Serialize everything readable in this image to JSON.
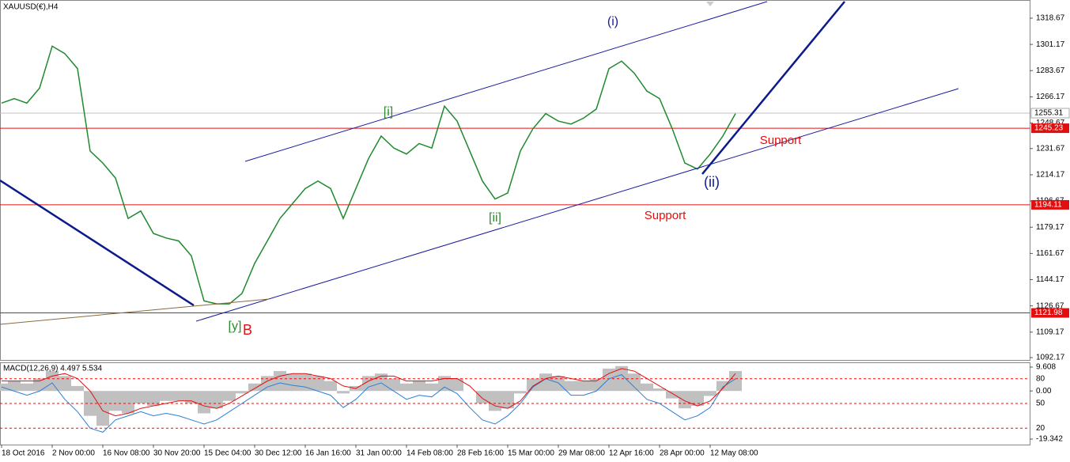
{
  "chart_data": [
    {
      "type": "line",
      "title": "XAUUSD(€),H4",
      "categories": [
        "18 Oct 2016",
        null,
        null,
        null,
        "2 Nov 00:00",
        null,
        null,
        null,
        "16 Nov 08:00",
        null,
        null,
        null,
        "30 Nov 20:00",
        null,
        null,
        null,
        "15 Dec 04:00",
        null,
        null,
        null,
        "30 Dec 12:00",
        null,
        null,
        null,
        "16 Jan 16:00",
        null,
        null,
        null,
        "31 Jan 00:00",
        null,
        null,
        null,
        "14 Feb 08:00",
        null,
        null,
        null,
        "28 Feb 16:00",
        null,
        null,
        null,
        "15 Mar 00:00",
        null,
        null,
        null,
        "29 Mar 08:00",
        null,
        null,
        null,
        "12 Apr 16:00",
        null,
        null,
        null,
        "28 Apr 00:00",
        null,
        null,
        null,
        "12 May 08:00",
        null,
        null
      ],
      "values": [
        1262,
        1265,
        1262,
        1272,
        1300,
        1295,
        1285,
        1230,
        1222,
        1212,
        1185,
        1190,
        1175,
        1172,
        1170,
        1160,
        1130,
        1128,
        1128,
        1135,
        1155,
        1170,
        1185,
        1195,
        1205,
        1210,
        1205,
        1185,
        1205,
        1225,
        1240,
        1232,
        1228,
        1235,
        1232,
        1260,
        1250,
        1230,
        1210,
        1198,
        1202,
        1230,
        1245,
        1255,
        1250,
        1248,
        1252,
        1258,
        1285,
        1290,
        1282,
        1270,
        1265,
        1245,
        1222,
        1218,
        1228,
        1240,
        1255
      ],
      "color": "#1f8a2e",
      "ylim": [
        1090.6,
        1330.8
      ],
      "yticks": [
        1318.67,
        1301.17,
        1283.67,
        1266.17,
        1248.67,
        1231.67,
        1214.17,
        1196.67,
        1179.17,
        1161.67,
        1144.17,
        1126.67,
        1109.17,
        1092.17
      ],
      "current_price": 1255.31,
      "levels": [
        1245.23,
        1194.11,
        1121.98
      ],
      "level_color": "#e01010",
      "annotations": [
        "(i)",
        "[i]",
        "[ii]",
        "(ii)",
        "Support",
        "Support",
        "[y]",
        "B"
      ]
    },
    {
      "type": "macd",
      "title": "MACD(12,26,9) 4.497 5.534",
      "histogram": {
        "color": "#c0c0c0",
        "values": [
          3,
          4,
          3,
          5,
          8,
          6,
          2,
          -10,
          -14,
          -8,
          -9,
          -5,
          -6,
          -4,
          -4,
          -5,
          -9,
          -7,
          -4,
          -1,
          3,
          6,
          8,
          7,
          7,
          6,
          4,
          -1,
          2,
          6,
          7,
          5,
          3,
          4,
          3,
          6,
          5,
          0,
          -5,
          -8,
          -7,
          -1,
          5,
          7,
          6,
          4,
          4,
          5,
          9,
          10,
          7,
          3,
          1,
          -3,
          -7,
          -6,
          -2,
          4,
          8
        ]
      },
      "signal": {
        "color": "#e01010",
        "values": [
          4,
          4,
          4,
          4,
          6,
          7,
          5,
          0,
          -8,
          -10,
          -9,
          -7,
          -6,
          -5,
          -4,
          -4,
          -6,
          -7,
          -5,
          -2,
          1,
          4,
          6,
          7,
          7,
          6,
          5,
          2,
          1,
          4,
          6,
          6,
          4,
          4,
          4,
          5,
          5,
          2,
          -3,
          -6,
          -7,
          -4,
          2,
          5,
          6,
          5,
          4,
          4,
          7,
          9,
          8,
          5,
          2,
          -1,
          -4,
          -6,
          -4,
          1,
          7
        ]
      },
      "oscillator": {
        "color": "#2a7fd4",
        "axis": "y2",
        "values": [
          70,
          65,
          60,
          65,
          75,
          55,
          40,
          20,
          15,
          30,
          35,
          40,
          35,
          38,
          35,
          30,
          25,
          30,
          40,
          50,
          60,
          70,
          75,
          72,
          70,
          65,
          60,
          45,
          55,
          70,
          75,
          65,
          55,
          60,
          58,
          70,
          62,
          45,
          30,
          25,
          35,
          50,
          70,
          80,
          75,
          60,
          60,
          65,
          80,
          85,
          70,
          55,
          50,
          40,
          30,
          35,
          45,
          70,
          80
        ]
      },
      "ylim": [
        -21.57,
        11.52
      ],
      "yticks": [
        9.608,
        {
          "value": 0,
          "label": "0.00"
        },
        -19.342
      ],
      "y2lim": [
        0,
        100
      ],
      "y2ticks": [
        80,
        50,
        20
      ]
    }
  ]
}
